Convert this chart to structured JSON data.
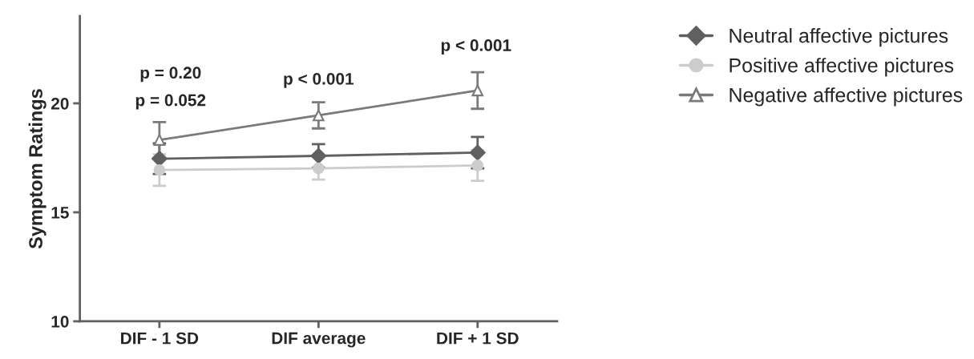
{
  "chart_data": {
    "type": "line",
    "ylabel": "Symptom Ratings",
    "categories": [
      "DIF - 1 SD",
      "DIF average",
      "DIF + 1 SD"
    ],
    "series": [
      {
        "name": "Neutral affective pictures",
        "color": "#606060",
        "marker": "diamond",
        "values": [
          17.46,
          17.59,
          17.74
        ],
        "errors": [
          0.7,
          0.54,
          0.72
        ]
      },
      {
        "name": "Positive affective pictures",
        "color": "#cccccc",
        "marker": "circle",
        "values": [
          16.94,
          17.02,
          17.15
        ],
        "errors": [
          0.72,
          0.52,
          0.7
        ]
      },
      {
        "name": "Negative affective pictures",
        "color": "#7a7a7a",
        "marker": "triangle",
        "values": [
          18.32,
          19.45,
          20.59
        ],
        "errors": [
          0.82,
          0.6,
          0.84
        ]
      }
    ],
    "ylim": [
      10,
      24
    ],
    "yticks": [
      10,
      15,
      20
    ],
    "grid": false,
    "legend": "top right",
    "annotations": [
      "p = 0.20",
      "p = 0.052",
      "p < 0.001",
      "p < 0.001"
    ]
  }
}
